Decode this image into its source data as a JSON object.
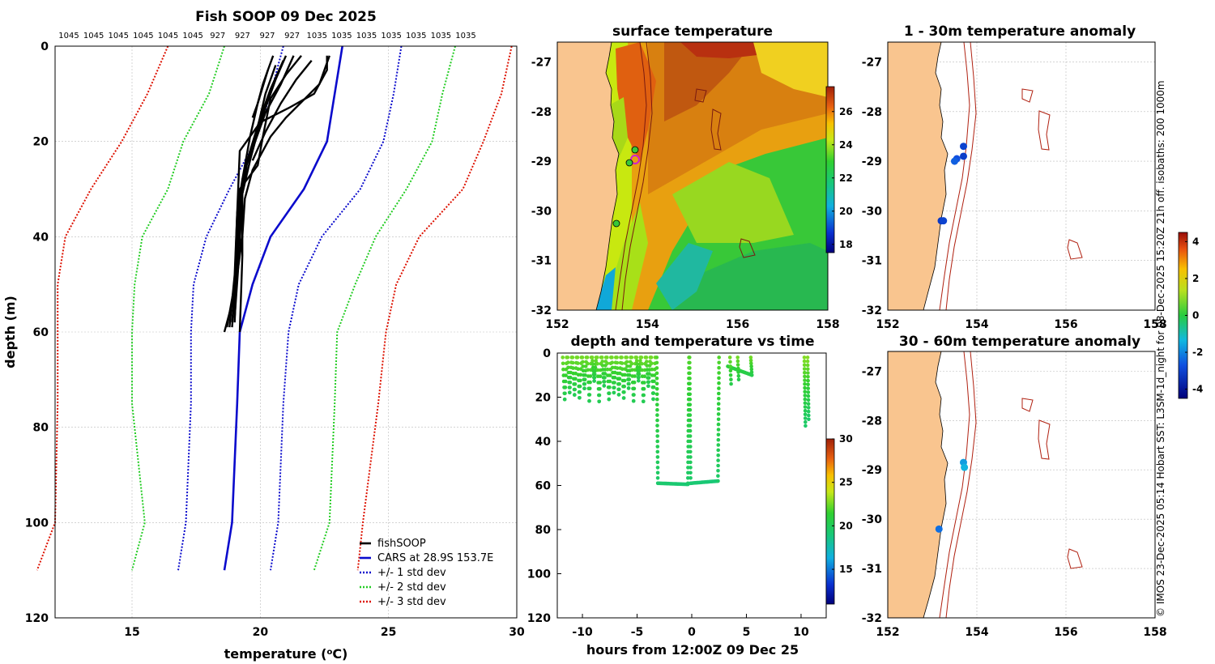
{
  "footer": {
    "credit": "© IMOS 23-Dec-2025 05:14 Hobart SST: L3SM-1d_night for 08-Dec-2025 15:20Z 21h off. isobaths: 200  1000m"
  },
  "chart_data": [
    {
      "id": "profile",
      "type": "line",
      "title": "Fish SOOP 09 Dec 2025",
      "xlabel": "temperature (°C)",
      "xlabel_text": "temperature (",
      "xlabel_sup": "o",
      "xlabel_unit": "C)",
      "ylabel": "depth (m)",
      "xlim": [
        12,
        30
      ],
      "ylim": [
        0,
        120
      ],
      "xticks": [
        "15",
        "20",
        "25",
        "30"
      ],
      "yticks": [
        "0",
        "20",
        "40",
        "60",
        "80",
        "100",
        "120"
      ],
      "top_labels": [
        "1045",
        "1045",
        "1045",
        "1045",
        "1045",
        "1045",
        "927",
        "927",
        "927",
        "927",
        "1035",
        "1035",
        "1035",
        "1035",
        "1035",
        "1035",
        "1035"
      ],
      "legend": [
        "fishSOOP",
        "CARS at 28.9S 153.7E",
        "+/- 1 std dev",
        "+/- 2 std dev",
        "+/- 3 std dev"
      ],
      "legend_colors": [
        "#000000",
        "#0a0acc",
        "#0a0acc",
        "#22cc22",
        "#dd1100"
      ],
      "depths": [
        0,
        10,
        20,
        30,
        40,
        50,
        60,
        75,
        100,
        110
      ],
      "cars_mean": [
        23.2,
        22.9,
        22.6,
        21.7,
        20.4,
        19.7,
        19.2,
        19.1,
        18.9,
        18.6
      ],
      "std1_low": [
        20.9,
        20.4,
        19.8,
        18.8,
        17.9,
        17.4,
        17.3,
        17.3,
        17.1,
        16.8
      ],
      "std1_high": [
        25.5,
        25.2,
        24.8,
        23.9,
        22.4,
        21.5,
        21.1,
        20.9,
        20.7,
        20.4
      ],
      "std2_low": [
        18.6,
        18.0,
        17.0,
        16.4,
        15.4,
        15.1,
        15.0,
        15.0,
        15.5,
        15.0
      ],
      "std2_high": [
        27.6,
        27.1,
        26.7,
        25.7,
        24.5,
        23.7,
        23.0,
        22.9,
        22.7,
        22.1
      ],
      "std3_low": [
        16.4,
        15.6,
        14.6,
        13.4,
        12.4,
        12.1,
        12.1,
        12.1,
        12.0,
        11.3
      ],
      "std3_high": [
        29.8,
        29.4,
        28.7,
        27.9,
        26.2,
        25.3,
        24.9,
        24.6,
        24.0,
        23.8
      ],
      "fish_profiles": [
        {
          "t": [
            22.6,
            22.6,
            22.1,
            21.1,
            20.0,
            19.2,
            19.1,
            19.0,
            18.7
          ],
          "d": [
            2,
            5,
            10,
            13,
            16,
            22,
            35,
            50,
            59
          ]
        },
        {
          "t": [
            22.7,
            22.3,
            21.0,
            20.4,
            19.7,
            19.4,
            19.3,
            19.0,
            18.6
          ],
          "d": [
            2,
            8,
            15,
            19,
            26,
            32,
            40,
            52,
            60
          ]
        },
        {
          "t": [
            21.6,
            21.0,
            20.4,
            20.1,
            19.9,
            19.2,
            19.1,
            19.0
          ],
          "d": [
            2,
            6,
            11,
            19,
            25,
            30,
            45,
            58
          ]
        },
        {
          "t": [
            21.3,
            20.8,
            20.2,
            19.8,
            19.4,
            19.2,
            19.1,
            18.9
          ],
          "d": [
            2,
            8,
            14,
            20,
            26,
            33,
            45,
            59
          ]
        },
        {
          "t": [
            20.9,
            20.4,
            20.0,
            19.6,
            19.3,
            19.1,
            19.0,
            18.8
          ],
          "d": [
            3,
            9,
            15,
            22,
            28,
            35,
            48,
            59
          ]
        },
        {
          "t": [
            20.6,
            20.2,
            19.9,
            19.5,
            19.3,
            19.1,
            18.9
          ],
          "d": [
            4,
            10,
            17,
            24,
            31,
            45,
            58
          ]
        },
        {
          "t": [
            20.3,
            19.9,
            19.6,
            19.3,
            19.2,
            19.0
          ],
          "d": [
            5,
            12,
            19,
            28,
            42,
            57
          ]
        },
        {
          "t": [
            21.0,
            20.6,
            20.0,
            19.6,
            19.3,
            19.3,
            19.2
          ],
          "d": [
            2,
            7,
            16,
            24,
            31,
            44,
            60
          ]
        },
        {
          "t": [
            22.0,
            21.4,
            20.8,
            20.2,
            19.7
          ],
          "d": [
            3,
            7,
            12,
            18,
            24
          ]
        },
        {
          "t": [
            20.5,
            20.3,
            20.1,
            19.9,
            19.7
          ],
          "d": [
            2,
            5,
            8,
            12,
            15
          ]
        }
      ]
    },
    {
      "id": "sst",
      "type": "heatmap",
      "title": "surface temperature",
      "xlim": [
        152,
        158
      ],
      "ylim": [
        -32,
        -26.6
      ],
      "xticks": [
        "152",
        "154",
        "156",
        "158"
      ],
      "yticks": [
        "-27",
        "-28",
        "-29",
        "-30",
        "-31",
        "-32"
      ],
      "colorbar_ticks": [
        "18",
        "20",
        "22",
        "24",
        "26"
      ],
      "colorbar_range": [
        17.5,
        27.5
      ]
    },
    {
      "id": "anom1",
      "type": "scatter",
      "title": "1 - 30m temperature anomaly",
      "xlim": [
        152,
        158
      ],
      "ylim": [
        -32,
        -26.6
      ],
      "xticks": [
        "152",
        "154",
        "156",
        "158"
      ],
      "yticks": [
        "-27",
        "-28",
        "-29",
        "-30",
        "-31",
        "-32"
      ],
      "points": [
        {
          "lon": 153.7,
          "lat": -28.7,
          "anom": -3.0
        },
        {
          "lon": 153.7,
          "lat": -28.9,
          "anom": -3.1
        },
        {
          "lon": 153.55,
          "lat": -28.95,
          "anom": -2.7
        },
        {
          "lon": 153.5,
          "lat": -29.0,
          "anom": -2.5
        },
        {
          "lon": 153.2,
          "lat": -30.2,
          "anom": -3.2
        },
        {
          "lon": 153.25,
          "lat": -30.2,
          "anom": -3.0
        }
      ]
    },
    {
      "id": "anom2",
      "type": "scatter",
      "title": "30 - 60m temperature anomaly",
      "xlim": [
        152,
        158
      ],
      "ylim": [
        -32,
        -26.6
      ],
      "xticks": [
        "152",
        "154",
        "156",
        "158"
      ],
      "yticks": [
        "-27",
        "-28",
        "-29",
        "-30",
        "-31",
        "-32"
      ],
      "points": [
        {
          "lon": 153.7,
          "lat": -28.85,
          "anom": -1.7
        },
        {
          "lon": 153.72,
          "lat": -28.95,
          "anom": -1.4
        },
        {
          "lon": 153.15,
          "lat": -30.2,
          "anom": -2.3
        }
      ],
      "colorbar_ticks": [
        "-4",
        "-2",
        "0",
        "2",
        "4"
      ],
      "colorbar_range": [
        -4.5,
        4.5
      ]
    },
    {
      "id": "timeseries",
      "type": "scatter",
      "title": "depth and temperature vs time",
      "xlabel": "hours from 12:00Z 09 Dec 25",
      "xlim": [
        -12.3,
        12.3
      ],
      "ylim": [
        0,
        120
      ],
      "xticks": [
        "-10",
        "-5",
        "0",
        "5",
        "10"
      ],
      "yticks": [
        "0",
        "20",
        "40",
        "60",
        "80",
        "100",
        "120"
      ],
      "colorbar_ticks": [
        "15",
        "20",
        "25",
        "30"
      ],
      "colorbar_range": [
        11,
        30
      ]
    }
  ]
}
